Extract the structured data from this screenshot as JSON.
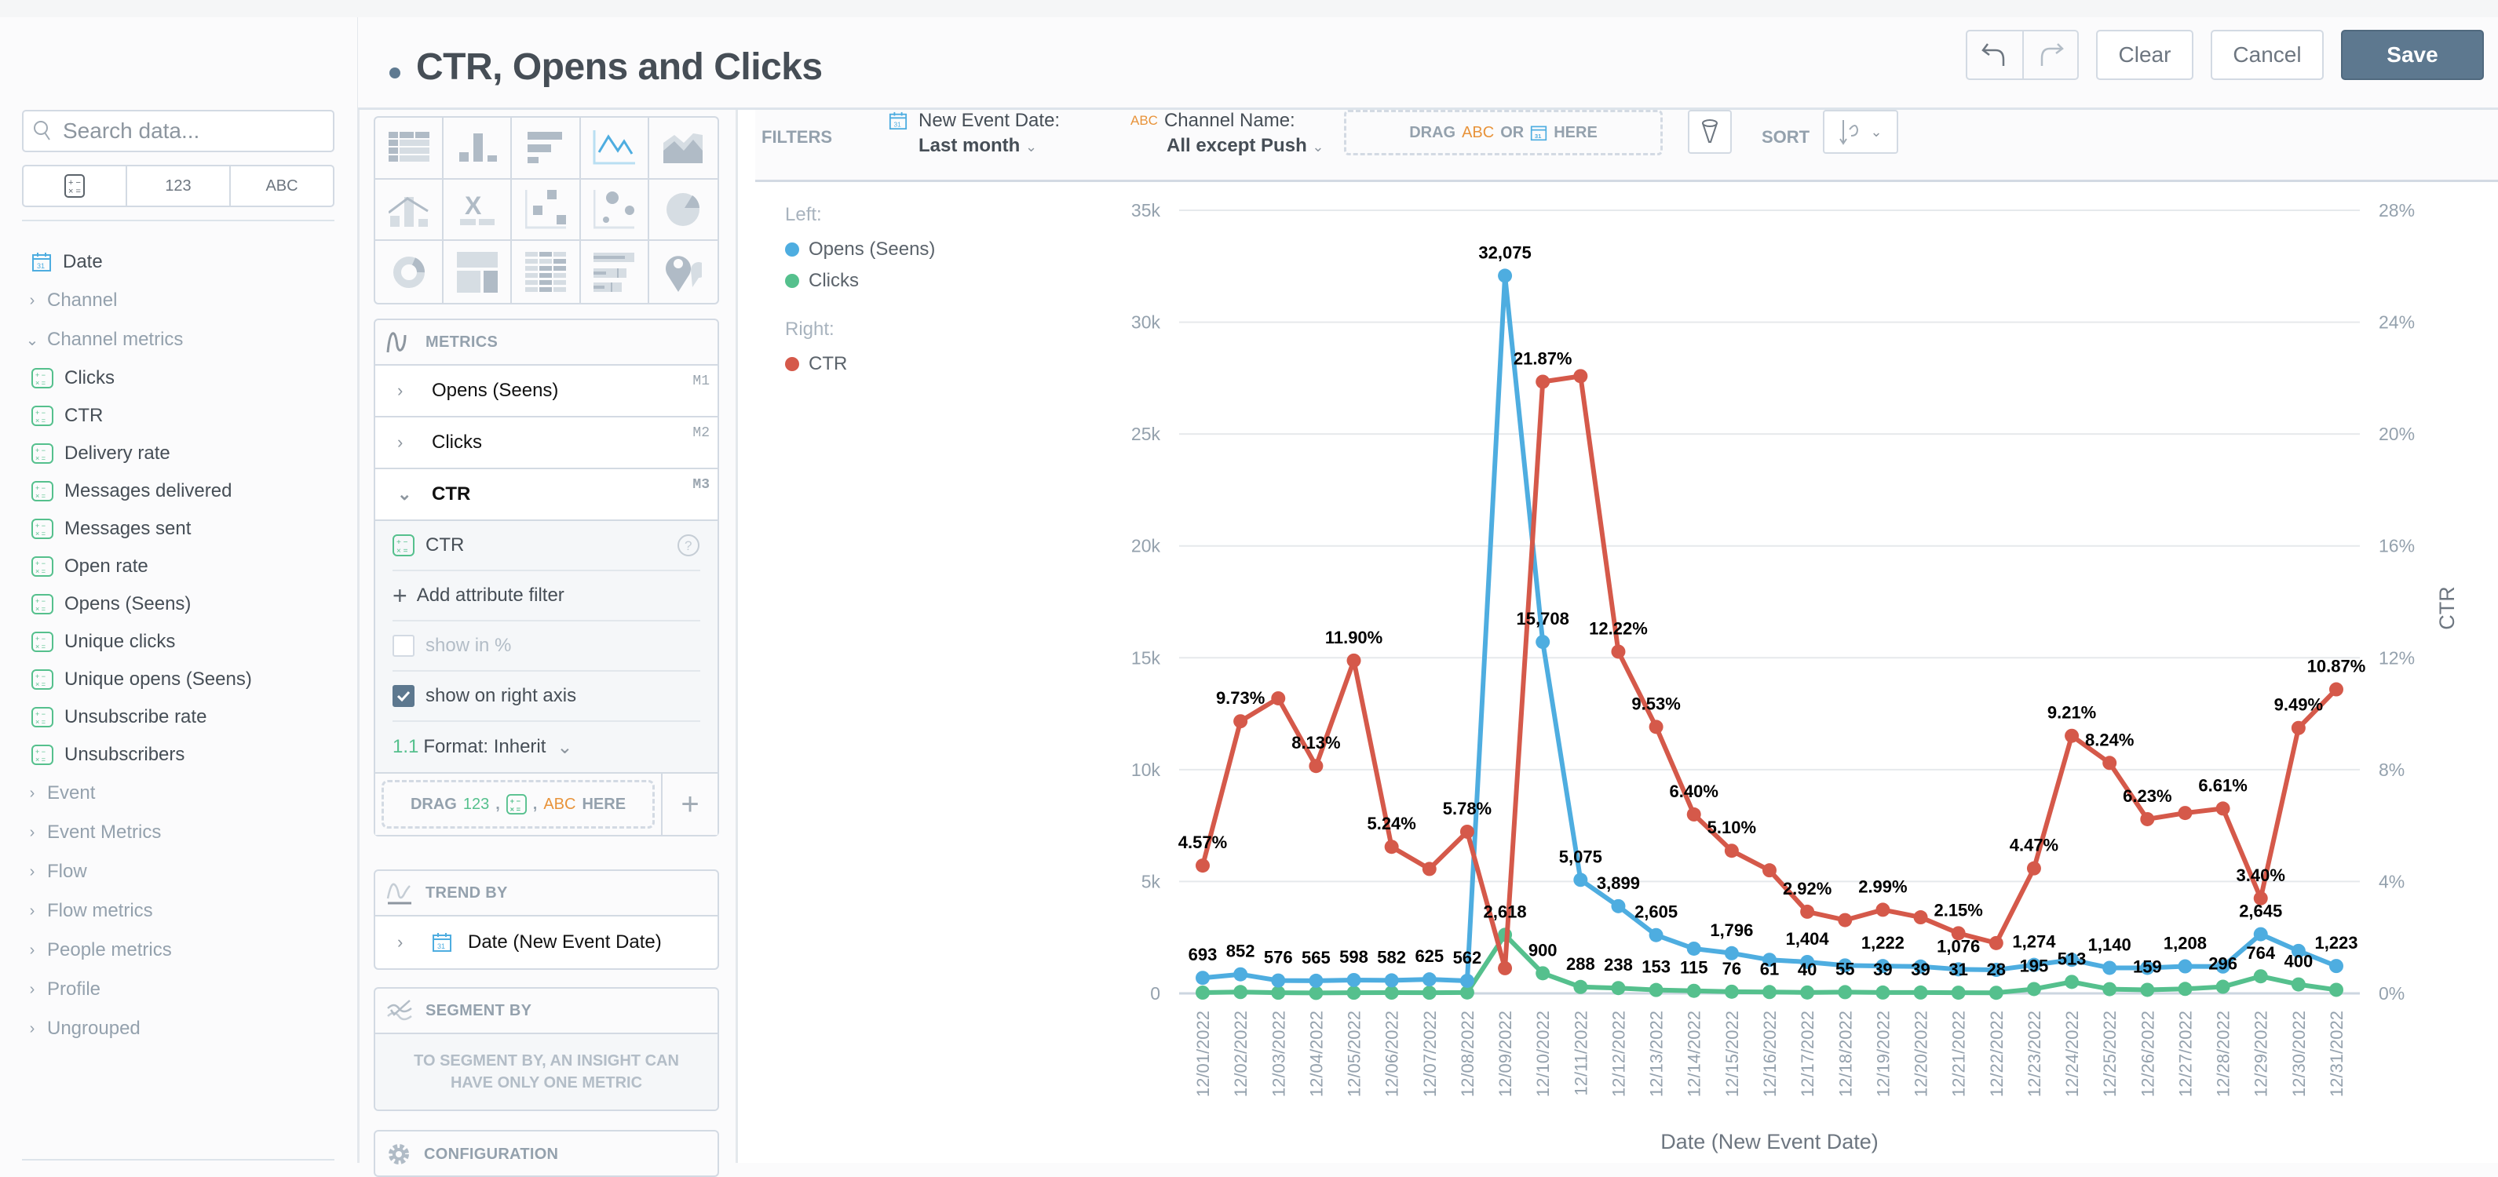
{
  "header": {
    "title": "CTR, Opens and Clicks",
    "undo_icon": "undo-icon",
    "redo_icon": "redo-icon",
    "clear_label": "Clear",
    "cancel_label": "Cancel",
    "save_label": "Save"
  },
  "sidebar": {
    "search_placeholder": "Search data...",
    "type_filters": [
      "calculator-icon",
      "123",
      "ABC"
    ],
    "date_item": "Date",
    "groups_before": [
      {
        "label": "Channel",
        "expanded": false
      },
      {
        "label": "Channel metrics",
        "expanded": true
      }
    ],
    "metrics": [
      "Clicks",
      "CTR",
      "Delivery rate",
      "Messages delivered",
      "Messages sent",
      "Open rate",
      "Opens (Seens)",
      "Unique clicks",
      "Unique opens (Seens)",
      "Unsubscribe rate",
      "Unsubscribers"
    ],
    "groups_after": [
      "Event",
      "Event Metrics",
      "Flow",
      "Flow metrics",
      "People metrics",
      "Profile",
      "Ungrouped"
    ]
  },
  "config": {
    "vis_types": [
      "table",
      "column",
      "bar",
      "line",
      "area",
      "combo",
      "headline",
      "scatter",
      "bubble",
      "pie",
      "donut",
      "treemap",
      "heatmap",
      "bullet",
      "geo"
    ],
    "active_vis": "line",
    "metrics_title": "METRICS",
    "metrics": [
      {
        "label": "Opens (Seens)",
        "id": "M1",
        "expanded": false
      },
      {
        "label": "Clicks",
        "id": "M2",
        "expanded": false
      },
      {
        "label": "CTR",
        "id": "M3",
        "expanded": true
      }
    ],
    "detail": {
      "measure": "CTR",
      "add_filter": "Add attribute filter",
      "show_in_percent": "show in %",
      "show_in_percent_checked": false,
      "show_right_axis": "show on right axis",
      "show_right_axis_checked": true,
      "format_prefix": "1.1",
      "format_label": "Format: Inherit"
    },
    "drag_metric": {
      "drag": "DRAG",
      "num": "123",
      "sep": ",",
      "abc": "ABC",
      "here": "HERE"
    },
    "trend_title": "TREND BY",
    "trend_item": "Date (New Event Date)",
    "segment_title": "SEGMENT BY",
    "segment_note": "TO SEGMENT BY, AN INSIGHT CAN HAVE ONLY ONE METRIC",
    "configuration_title": "CONFIGURATION"
  },
  "filters": {
    "label": "FILTERS",
    "items": [
      {
        "name": "New Event Date:",
        "value": "Last month",
        "type": "date"
      },
      {
        "name": "Channel Name:",
        "value": "All except Push",
        "type": "attribute"
      }
    ],
    "drop": {
      "drag": "DRAG",
      "abc": "ABC",
      "or": "OR",
      "here": "HERE"
    },
    "sort_label": "SORT"
  },
  "legend": {
    "left_title": "Left:",
    "right_title": "Right:",
    "left": [
      {
        "name": "Opens (Seens)",
        "color": "#4eade0"
      },
      {
        "name": "Clicks",
        "color": "#55c08d"
      }
    ],
    "right": [
      {
        "name": "CTR",
        "color": "#d5594a"
      }
    ]
  },
  "chart_data": {
    "type": "line",
    "title": "",
    "xlabel": "Date (New Event Date)",
    "ylabel": "",
    "y2label": "CTR",
    "ylim": [
      0,
      35000
    ],
    "y2lim": [
      0,
      28
    ],
    "yticks": [
      "0",
      "5k",
      "10k",
      "15k",
      "20k",
      "25k",
      "30k",
      "35k"
    ],
    "y2ticks": [
      "0%",
      "4%",
      "8%",
      "12%",
      "16%",
      "20%",
      "24%",
      "28%"
    ],
    "grid": true,
    "legend_position": "left",
    "categories": [
      "12/01/2022",
      "12/02/2022",
      "12/03/2022",
      "12/04/2022",
      "12/05/2022",
      "12/06/2022",
      "12/07/2022",
      "12/08/2022",
      "12/09/2022",
      "12/10/2022",
      "12/11/2022",
      "12/12/2022",
      "12/13/2022",
      "12/14/2022",
      "12/15/2022",
      "12/16/2022",
      "12/17/2022",
      "12/18/2022",
      "12/19/2022",
      "12/20/2022",
      "12/21/2022",
      "12/22/2022",
      "12/23/2022",
      "12/24/2022",
      "12/25/2022",
      "12/26/2022",
      "12/27/2022",
      "12/28/2022",
      "12/29/2022",
      "12/30/2022",
      "12/31/2022"
    ],
    "series": [
      {
        "name": "Opens (Seens)",
        "axis": "left",
        "color": "#4eade0",
        "values": [
          693,
          852,
          576,
          565,
          598,
          582,
          625,
          562,
          32075,
          15708,
          5075,
          3899,
          2605,
          2000,
          1796,
          1500,
          1404,
          1250,
          1222,
          1200,
          1076,
          1050,
          1274,
          1500,
          1140,
          1140,
          1208,
          1200,
          2645,
          1900,
          1223
        ],
        "labels": [
          "693",
          "852",
          "576",
          "565",
          "598",
          "582",
          "625",
          "562",
          "32,075",
          "15,708",
          "5,075",
          "3,899",
          "2,605",
          "",
          "1,796",
          "",
          "1,404",
          "",
          "1,222",
          "",
          "1,076",
          "",
          "1,274",
          "",
          "1,140",
          "",
          "1,208",
          "",
          "2,645",
          "",
          "1,223"
        ]
      },
      {
        "name": "Clicks",
        "axis": "left",
        "color": "#55c08d",
        "values": [
          35,
          60,
          30,
          20,
          30,
          35,
          30,
          40,
          2618,
          900,
          288,
          238,
          153,
          115,
          76,
          61,
          40,
          55,
          39,
          39,
          31,
          28,
          195,
          513,
          190,
          159,
          200,
          296,
          764,
          400,
          160
        ],
        "labels": [
          "",
          "",
          "",
          "",
          "",
          "",
          "",
          "",
          "2,618",
          "900",
          "288",
          "238",
          "153",
          "115",
          "76",
          "61",
          "40",
          "55",
          "39",
          "39",
          "31",
          "28",
          "195",
          "513",
          "",
          "159",
          "",
          "296",
          "764",
          "400",
          ""
        ]
      },
      {
        "name": "CTR",
        "axis": "right",
        "color": "#d5594a",
        "values": [
          4.57,
          9.73,
          10.55,
          8.13,
          11.9,
          5.24,
          4.45,
          5.78,
          0.9,
          21.87,
          22.07,
          12.22,
          9.53,
          6.4,
          5.1,
          4.4,
          2.92,
          2.62,
          2.99,
          2.72,
          2.15,
          1.8,
          4.47,
          9.21,
          8.24,
          6.23,
          6.45,
          6.61,
          3.4,
          9.49,
          10.87
        ],
        "labels": [
          "4.57%",
          "9.73%",
          "",
          "8.13%",
          "11.90%",
          "5.24%",
          "",
          "5.78%",
          "",
          "21.87%",
          "",
          "12.22%",
          "9.53%",
          "6.40%",
          "5.10%",
          "",
          "2.92%",
          "",
          "2.99%",
          "",
          "2.15%",
          "",
          "4.47%",
          "9.21%",
          "8.24%",
          "6.23%",
          "",
          "6.61%",
          "3.40%",
          "9.49%",
          "10.87%"
        ]
      }
    ]
  }
}
